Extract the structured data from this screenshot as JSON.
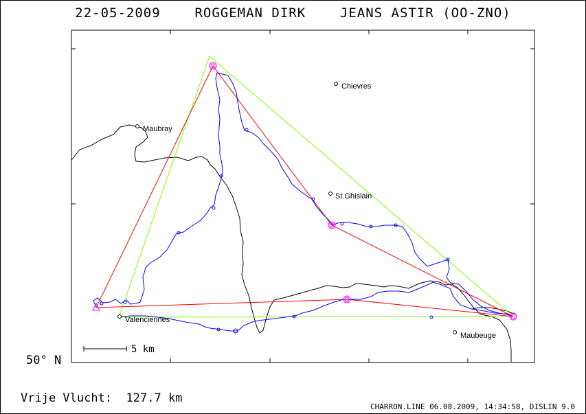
{
  "header": {
    "date": "22-05-2009",
    "pilot": "ROGGEMAN DIRK",
    "glider": "JEANS ASTIR (OO-ZNO)"
  },
  "map": {
    "latitude_label": "50° N",
    "scale_label": "5 km",
    "towns": [
      {
        "name": "Chievres"
      },
      {
        "name": "Maubray"
      },
      {
        "name": "St.Ghislain"
      },
      {
        "name": "Valenciennes"
      },
      {
        "name": "Maubeuge"
      }
    ],
    "colors": {
      "flight_track": "#0000ff",
      "task_legs": "#ff0000",
      "fai_triangle": "#80ff00",
      "border": "#000000",
      "turnpoints": "#ff00ff"
    }
  },
  "footer": {
    "distance_label": "Vrije Vlucht:",
    "distance_value": "127.7 km",
    "credit": "CHARRON.LINE 06.08.2009, 14:34:58, DISLIN 9.0"
  }
}
